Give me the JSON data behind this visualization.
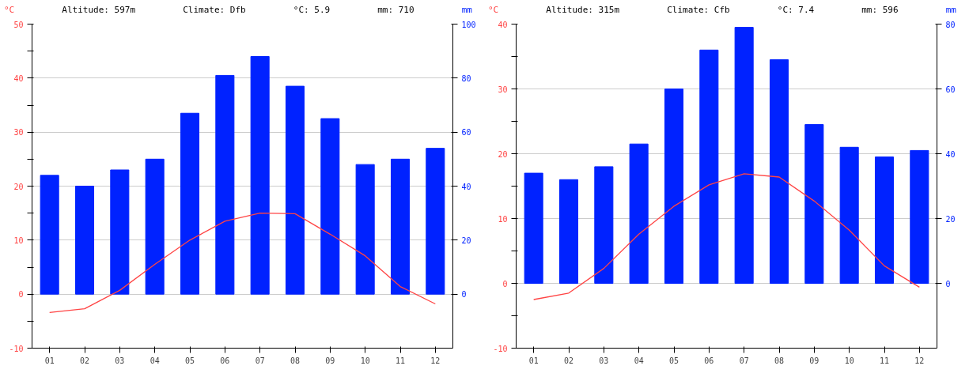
{
  "chart_data": [
    {
      "type": "bar",
      "ylabel": "°C",
      "y2label": "mm",
      "annotations": [
        "Altitude: 597m",
        "Climate: Dfb",
        "°C: 5.9",
        "mm: 710"
      ],
      "categories": [
        "01",
        "02",
        "03",
        "04",
        "05",
        "06",
        "07",
        "08",
        "09",
        "10",
        "11",
        "12"
      ],
      "series": [
        {
          "axis": "y2",
          "color": "#0022ff",
          "values": [
            44,
            40,
            46,
            50,
            67,
            81,
            88,
            77,
            65,
            48,
            50,
            54
          ]
        },
        {
          "type": "line",
          "axis": "y",
          "color": "#ff4444",
          "values": [
            -3.4,
            -2.7,
            0.7,
            5.5,
            10.0,
            13.5,
            15.0,
            14.9,
            11.1,
            7.1,
            1.4,
            -1.8
          ]
        }
      ],
      "ylim": [
        -10,
        50
      ],
      "yticks": [
        -10,
        {
          "value": -5,
          "label": null
        },
        0,
        {
          "value": 5,
          "label": null
        },
        10,
        {
          "value": 15,
          "label": null
        },
        20,
        {
          "value": 25,
          "label": null
        },
        30,
        {
          "value": 35,
          "label": null
        },
        40,
        {
          "value": 45,
          "label": null
        },
        50
      ],
      "y2lim": [
        -20,
        100
      ],
      "y2ticks": [
        0,
        20,
        40,
        60,
        80,
        100
      ],
      "grid": "y",
      "line_style": "solid"
    },
    {
      "type": "bar",
      "ylabel": "°C",
      "y2label": "mm",
      "annotations": [
        "Altitude: 315m",
        "Climate: Cfb",
        "°C: 7.4",
        "mm: 596"
      ],
      "categories": [
        "01",
        "02",
        "03",
        "04",
        "05",
        "06",
        "07",
        "08",
        "09",
        "10",
        "11",
        "12"
      ],
      "series": [
        {
          "axis": "y2",
          "color": "#0022ff",
          "values": [
            34,
            32,
            36,
            43,
            60,
            72,
            79,
            69,
            49,
            42,
            39,
            41
          ]
        },
        {
          "type": "line",
          "axis": "y",
          "color": "#ff4444",
          "values": [
            -2.5,
            -1.5,
            2.3,
            7.6,
            11.9,
            15.2,
            16.9,
            16.4,
            12.7,
            8.2,
            2.7,
            -0.6
          ]
        }
      ],
      "ylim": [
        -10,
        40
      ],
      "yticks": [
        -10,
        {
          "value": -5,
          "label": null
        },
        0,
        {
          "value": 5,
          "label": null
        },
        10,
        {
          "value": 15,
          "label": null
        },
        20,
        {
          "value": 25,
          "label": null
        },
        30,
        {
          "value": 35,
          "label": null
        },
        40
      ],
      "y2lim": [
        -20,
        80
      ],
      "y2ticks": [
        0,
        20,
        40,
        60,
        80
      ],
      "grid": "y",
      "line_style": "solid"
    }
  ]
}
